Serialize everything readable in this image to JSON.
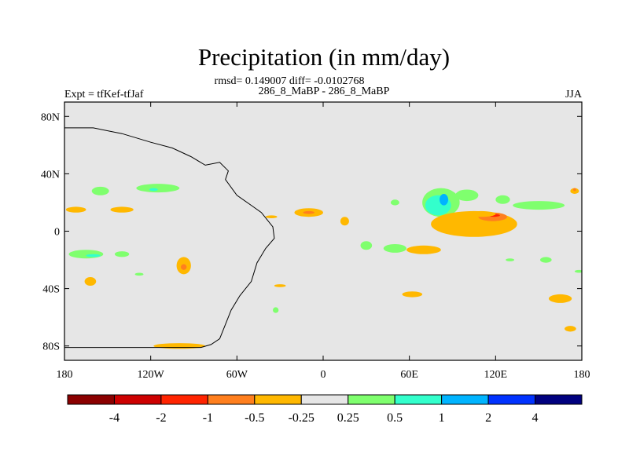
{
  "chart_data": {
    "type": "heatmap",
    "title": "Precipitation (in mm/day)",
    "stats_line": "rmsd= 0.149007 diff= -0.0102768",
    "left_label": "Expt = tfKef-tfJaf",
    "center_label": "286_8_MaBP - 286_8_MaBP",
    "right_label": "JJA",
    "x_ticks": [
      {
        "value": -180,
        "label": "180"
      },
      {
        "value": -120,
        "label": "120W"
      },
      {
        "value": -60,
        "label": "60W"
      },
      {
        "value": 0,
        "label": "0"
      },
      {
        "value": 60,
        "label": "60E"
      },
      {
        "value": 120,
        "label": "120E"
      },
      {
        "value": 180,
        "label": "180"
      }
    ],
    "y_ticks": [
      {
        "value": 80,
        "label": "80N"
      },
      {
        "value": 40,
        "label": "40N"
      },
      {
        "value": 0,
        "label": "0"
      },
      {
        "value": -40,
        "label": "40S"
      },
      {
        "value": -80,
        "label": "80S"
      }
    ],
    "xlim": [
      -180,
      180
    ],
    "ylim": [
      -90,
      90
    ],
    "background_color": "#e6e6e6",
    "colorbar": {
      "colors": [
        "#8b0000",
        "#cd0000",
        "#ff2400",
        "#ff7f1e",
        "#ffb800",
        "#e6e6e6",
        "#7fff6e",
        "#33ffcc",
        "#00b4ff",
        "#0032ff",
        "#00007f"
      ],
      "tick_labels": [
        "-4",
        "-2",
        "-1",
        "-0.5",
        "-0.25",
        "0.25",
        "0.5",
        "1",
        "2",
        "4"
      ]
    },
    "coastline": [
      [
        -180,
        -81
      ],
      [
        -85,
        -81
      ],
      [
        -78,
        -79
      ],
      [
        -72,
        -75
      ],
      [
        -68,
        -65
      ],
      [
        -64,
        -55
      ],
      [
        -58,
        -45
      ],
      [
        -50,
        -35
      ],
      [
        -46,
        -22
      ],
      [
        -40,
        -12
      ],
      [
        -34,
        -5
      ],
      [
        -35,
        3
      ],
      [
        -43,
        13
      ],
      [
        -50,
        18
      ],
      [
        -60,
        25
      ],
      [
        -68,
        36
      ],
      [
        -66,
        42
      ],
      [
        -72,
        48
      ],
      [
        -82,
        46
      ],
      [
        -92,
        52
      ],
      [
        -105,
        58
      ],
      [
        -120,
        62
      ],
      [
        -140,
        68
      ],
      [
        -160,
        72
      ],
      [
        -180,
        72
      ]
    ],
    "features": [
      {
        "lon": -97,
        "lat": -24,
        "rx": 5,
        "ry": 6,
        "value": -0.3
      },
      {
        "lon": -97,
        "lat": -25,
        "rx": 2,
        "ry": 2,
        "value": -0.8
      },
      {
        "lon": -115,
        "lat": 30,
        "rx": 15,
        "ry": 3,
        "value": 0.3
      },
      {
        "lon": -118,
        "lat": 29,
        "rx": 3,
        "ry": 1,
        "value": 0.6
      },
      {
        "lon": -155,
        "lat": 28,
        "rx": 6,
        "ry": 3,
        "value": 0.3
      },
      {
        "lon": -172,
        "lat": 15,
        "rx": 7,
        "ry": 2,
        "value": -0.3
      },
      {
        "lon": -140,
        "lat": 15,
        "rx": 8,
        "ry": 2,
        "value": -0.3
      },
      {
        "lon": -165,
        "lat": -16,
        "rx": 12,
        "ry": 3,
        "value": 0.3
      },
      {
        "lon": -160,
        "lat": -17,
        "rx": 5,
        "ry": 1,
        "value": 0.6
      },
      {
        "lon": -140,
        "lat": -16,
        "rx": 5,
        "ry": 2,
        "value": 0.3
      },
      {
        "lon": -162,
        "lat": -35,
        "rx": 4,
        "ry": 3,
        "value": -0.3
      },
      {
        "lon": -128,
        "lat": -30,
        "rx": 3,
        "ry": 1,
        "value": 0.3
      },
      {
        "lon": -100,
        "lat": -80,
        "rx": 18,
        "ry": 2,
        "value": -0.3
      },
      {
        "lon": -10,
        "lat": 13,
        "rx": 10,
        "ry": 3,
        "value": -0.3
      },
      {
        "lon": -10,
        "lat": 13,
        "rx": 4,
        "ry": 1,
        "value": -0.8
      },
      {
        "lon": -36,
        "lat": 10,
        "rx": 4,
        "ry": 1,
        "value": -0.3
      },
      {
        "lon": 15,
        "lat": 7,
        "rx": 3,
        "ry": 3,
        "value": -0.3
      },
      {
        "lon": 50,
        "lat": 20,
        "rx": 3,
        "ry": 2,
        "value": 0.3
      },
      {
        "lon": 82,
        "lat": 20,
        "rx": 13,
        "ry": 10,
        "value": 0.3
      },
      {
        "lon": 80,
        "lat": 18,
        "rx": 9,
        "ry": 7,
        "value": 0.6
      },
      {
        "lon": 84,
        "lat": 22,
        "rx": 3,
        "ry": 4,
        "value": 1.3
      },
      {
        "lon": 100,
        "lat": 25,
        "rx": 8,
        "ry": 4,
        "value": 0.3
      },
      {
        "lon": 125,
        "lat": 22,
        "rx": 5,
        "ry": 3,
        "value": 0.3
      },
      {
        "lon": 150,
        "lat": 18,
        "rx": 18,
        "ry": 3,
        "value": 0.3
      },
      {
        "lon": 175,
        "lat": 28,
        "rx": 3,
        "ry": 2,
        "value": -0.3
      },
      {
        "lon": 175,
        "lat": 29,
        "rx": 1,
        "ry": 1,
        "value": -0.8
      },
      {
        "lon": 105,
        "lat": 5,
        "rx": 30,
        "ry": 9,
        "value": -0.3
      },
      {
        "lon": 118,
        "lat": 10,
        "rx": 10,
        "ry": 3,
        "value": -0.8
      },
      {
        "lon": 119,
        "lat": 11,
        "rx": 4,
        "ry": 1,
        "value": -1.5
      },
      {
        "lon": 110,
        "lat": 12,
        "rx": 10,
        "ry": 2,
        "value": -0.3
      },
      {
        "lon": 70,
        "lat": -13,
        "rx": 12,
        "ry": 3,
        "value": -0.3
      },
      {
        "lon": 50,
        "lat": -12,
        "rx": 8,
        "ry": 3,
        "value": 0.3
      },
      {
        "lon": 30,
        "lat": -10,
        "rx": 4,
        "ry": 3,
        "value": 0.3
      },
      {
        "lon": 62,
        "lat": -44,
        "rx": 7,
        "ry": 2,
        "value": -0.3
      },
      {
        "lon": 165,
        "lat": -47,
        "rx": 8,
        "ry": 3,
        "value": -0.3
      },
      {
        "lon": 172,
        "lat": -68,
        "rx": 4,
        "ry": 2,
        "value": -0.3
      },
      {
        "lon": 155,
        "lat": -20,
        "rx": 4,
        "ry": 2,
        "value": 0.3
      },
      {
        "lon": -30,
        "lat": -38,
        "rx": 4,
        "ry": 1,
        "value": -0.3
      },
      {
        "lon": -33,
        "lat": -55,
        "rx": 2,
        "ry": 2,
        "value": 0.3
      },
      {
        "lon": 130,
        "lat": -20,
        "rx": 3,
        "ry": 1,
        "value": 0.3
      },
      {
        "lon": 178,
        "lat": -28,
        "rx": 3,
        "ry": 1,
        "value": 0.3
      }
    ]
  }
}
